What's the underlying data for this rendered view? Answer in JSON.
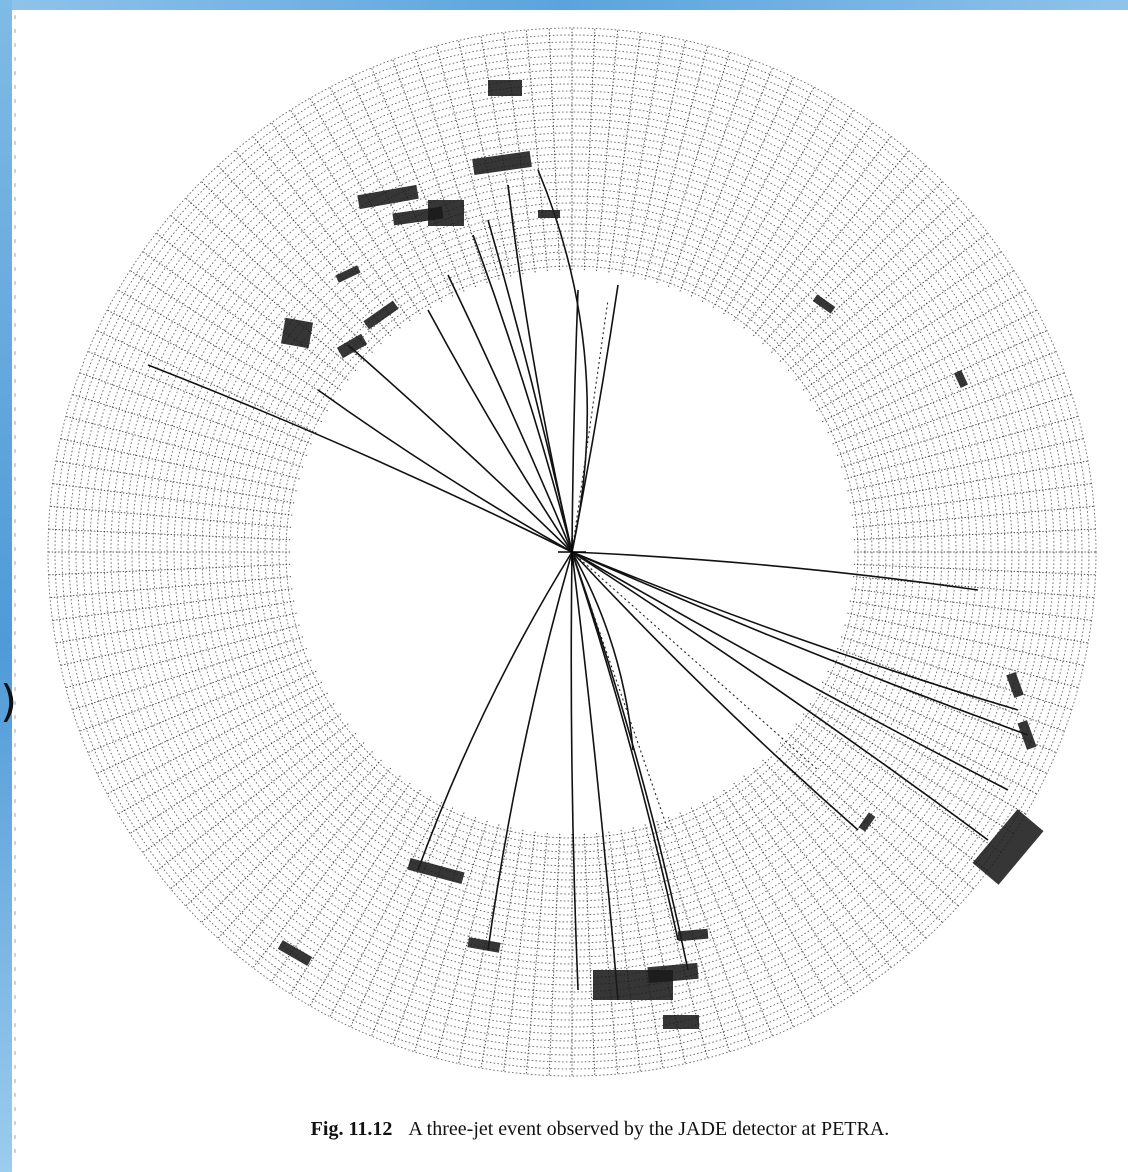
{
  "slide": {
    "paren_glyph": ")",
    "colors": {
      "accent_band": "#5aa4dd",
      "ink": "#111111"
    }
  },
  "figure": {
    "label": "Fig. 11.12",
    "caption": "A three-jet event observed by the JADE detector at PETRA."
  }
}
